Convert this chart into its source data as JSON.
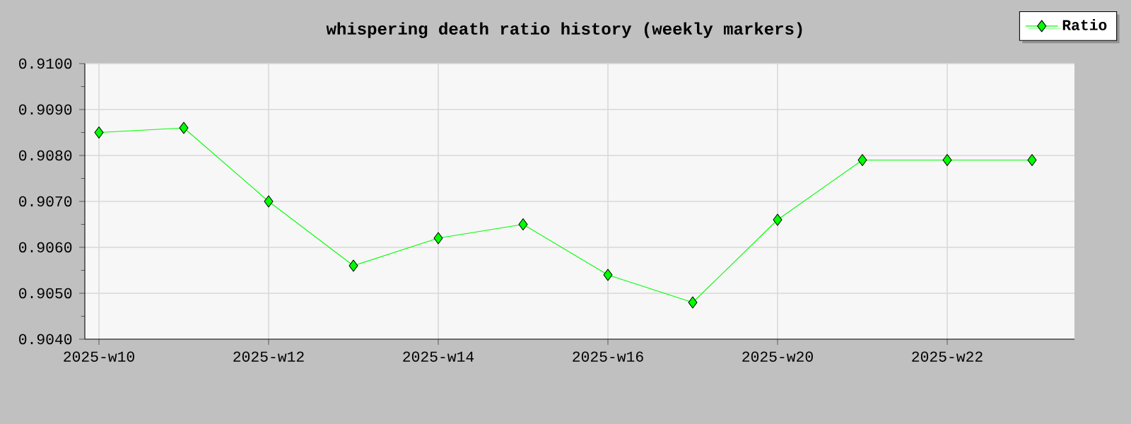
{
  "chart_data": {
    "type": "line",
    "title": "whispering death ratio history (weekly markers)",
    "categories": [
      "2025-w10",
      null,
      "2025-w12",
      null,
      "2025-w14",
      null,
      "2025-w16",
      null,
      "2025-w20",
      null,
      "2025-w22",
      null
    ],
    "series": [
      {
        "name": "Ratio",
        "color": "#00ff00",
        "values": [
          0.9085,
          0.9086,
          0.907,
          0.9056,
          0.9062,
          0.9065,
          0.9054,
          0.9048,
          0.9066,
          0.9079,
          0.9079,
          0.9079
        ]
      }
    ],
    "ylim": [
      0.904,
      0.91
    ],
    "yticks": [
      {
        "value": 0.904,
        "label": "0.9040"
      },
      {
        "value": 0.905,
        "label": "0.9050"
      },
      {
        "value": 0.906,
        "label": "0.9060"
      },
      {
        "value": 0.907,
        "label": "0.9070"
      },
      {
        "value": 0.908,
        "label": "0.9080"
      },
      {
        "value": 0.909,
        "label": "0.9090"
      },
      {
        "value": 0.91,
        "label": "0.9100"
      }
    ],
    "grid": true,
    "legend": "top right",
    "marker": "diamond",
    "line_style": "solid"
  }
}
